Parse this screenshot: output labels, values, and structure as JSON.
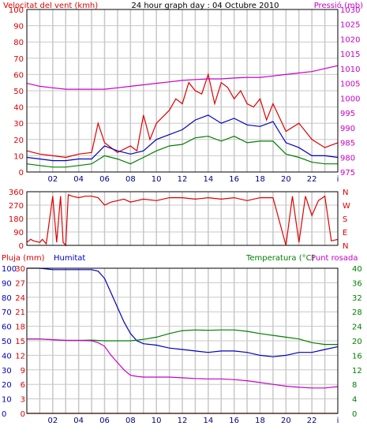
{
  "title": "24 hour graph day : 04 Octubre 2010",
  "colors": {
    "wind_speed": "#e00000",
    "wind_gust": "#e00000",
    "wind_avg": "#0000c0",
    "wind_min": "#008000",
    "pressure": "#c800c8",
    "wind_dir": "#e00000",
    "rain": "#e00000",
    "humidity": "#0000c0",
    "temperature": "#008000",
    "dewpoint": "#c800c8",
    "grid": "#c8c8c8",
    "frame": "#000000"
  },
  "chart_data": [
    {
      "type": "line",
      "title": "24 hour graph day : 04 Octubre 2010",
      "left_axis_label": "Velocitat del vent (kmh)",
      "right_axis_label": "Pressió (mb)",
      "x_ticks": [
        "02",
        "04",
        "06",
        "08",
        "10",
        "12",
        "14",
        "16",
        "18",
        "20",
        "22",
        "i"
      ],
      "left_ticks": [
        "0",
        "10",
        "20",
        "30",
        "40",
        "50",
        "60",
        "70",
        "80",
        "90",
        "100"
      ],
      "right_ticks": [
        "975",
        "980",
        "985",
        "990",
        "995",
        "1000",
        "1005",
        "1010",
        "1015",
        "1020",
        "1025",
        "1030"
      ],
      "ylim_left": [
        0,
        100
      ],
      "ylim_right": [
        975,
        1030
      ],
      "grid": true,
      "series": [
        {
          "key": "wind_gust",
          "axis": "left",
          "x": [
            0,
            1,
            2,
            3,
            4,
            5,
            5.5,
            6,
            6.5,
            7,
            8,
            8.5,
            9,
            9.5,
            10,
            11,
            11.5,
            12,
            12.5,
            13,
            13.5,
            14,
            14.5,
            15,
            15.5,
            16,
            16.5,
            17,
            17.5,
            18,
            18.5,
            19,
            20,
            21,
            22,
            23,
            24
          ],
          "values": [
            13,
            11,
            10,
            9,
            11,
            12,
            30,
            18,
            15,
            12,
            16,
            13,
            35,
            20,
            30,
            38,
            45,
            42,
            55,
            50,
            48,
            60,
            42,
            55,
            52,
            45,
            50,
            42,
            40,
            45,
            32,
            42,
            25,
            30,
            20,
            15,
            18
          ]
        },
        {
          "key": "wind_avg",
          "axis": "left",
          "x": [
            0,
            1,
            2,
            3,
            4,
            5,
            6,
            7,
            8,
            9,
            10,
            11,
            12,
            13,
            14,
            15,
            16,
            17,
            18,
            19,
            20,
            21,
            22,
            23,
            24
          ],
          "values": [
            9,
            8,
            7,
            7,
            8,
            8,
            16,
            13,
            11,
            13,
            20,
            23,
            26,
            32,
            35,
            30,
            33,
            29,
            28,
            31,
            18,
            15,
            10,
            10,
            9
          ]
        },
        {
          "key": "wind_min",
          "axis": "left",
          "x": [
            0,
            1,
            2,
            3,
            4,
            5,
            6,
            7,
            8,
            9,
            10,
            11,
            12,
            13,
            14,
            15,
            16,
            17,
            18,
            19,
            20,
            21,
            22,
            23,
            24
          ],
          "values": [
            5,
            4,
            3,
            3,
            4,
            5,
            10,
            8,
            5,
            9,
            13,
            16,
            17,
            21,
            22,
            19,
            22,
            18,
            19,
            19,
            11,
            9,
            6,
            5,
            5
          ]
        },
        {
          "key": "pressure",
          "axis": "right",
          "x": [
            0,
            1,
            2,
            3,
            4,
            5,
            6,
            7,
            8,
            9,
            10,
            11,
            12,
            13,
            14,
            15,
            16,
            17,
            18,
            19,
            20,
            21,
            22,
            23,
            24
          ],
          "values": [
            1005,
            1004,
            1003.5,
            1003,
            1003,
            1003,
            1003,
            1003.5,
            1004,
            1004.5,
            1005,
            1005.5,
            1006,
            1006.3,
            1006.5,
            1006.5,
            1006.8,
            1007,
            1007,
            1007.5,
            1008,
            1008.5,
            1009,
            1010,
            1011
          ]
        }
      ]
    },
    {
      "type": "line",
      "right_axis_label": "NWSEN",
      "x_ticks": [],
      "left_ticks": [
        "0",
        "90",
        "180",
        "270",
        "360"
      ],
      "right_ticks": [
        "N",
        "E",
        "S",
        "W",
        "N"
      ],
      "ylim_left": [
        0,
        360
      ],
      "grid": true,
      "series": [
        {
          "key": "wind_dir",
          "axis": "left",
          "x": [
            0,
            0.3,
            0.5,
            1.0,
            1.2,
            1.5,
            2.0,
            2.3,
            2.6,
            2.8,
            3.0,
            3.2,
            3.5,
            4.0,
            4.5,
            5.0,
            5.5,
            6.0,
            6.5,
            7.0,
            7.5,
            8.0,
            9.0,
            10.0,
            11.0,
            12.0,
            13.0,
            14.0,
            15.0,
            16.0,
            17.0,
            18.0,
            19.0,
            20.0,
            20.5,
            21.0,
            21.5,
            22.0,
            22.5,
            23.0,
            23.5,
            24.0
          ],
          "values": [
            20,
            40,
            30,
            20,
            40,
            10,
            330,
            20,
            330,
            20,
            0,
            340,
            330,
            320,
            330,
            330,
            320,
            270,
            290,
            300,
            310,
            290,
            310,
            300,
            320,
            320,
            310,
            320,
            310,
            320,
            300,
            320,
            320,
            0,
            330,
            20,
            330,
            200,
            300,
            330,
            30,
            40
          ]
        }
      ]
    },
    {
      "type": "line",
      "left_axis_labels": [
        "Pluja (mm)",
        "Humitat"
      ],
      "right_axis_labels": [
        "Temperatura (°C)",
        "Punt rosada"
      ],
      "x_ticks": [
        "02",
        "04",
        "06",
        "08",
        "10",
        "12",
        "14",
        "16",
        "18",
        "20",
        "22",
        "i"
      ],
      "humidity_ticks": [
        "0",
        "10",
        "20",
        "30",
        "40",
        "50",
        "60",
        "70",
        "80",
        "90",
        "100"
      ],
      "rain_ticks": [
        "0",
        "3",
        "6",
        "9",
        "12",
        "15",
        "18",
        "21",
        "24",
        "27",
        "30"
      ],
      "right_ticks": [
        "0",
        "2",
        "4",
        "6",
        "8",
        "10",
        "12",
        "14",
        "16",
        "18",
        "20",
        "22",
        "24",
        "26",
        "28",
        "30",
        "32",
        "34",
        "36",
        "38",
        "40"
      ],
      "ylim_humidity": [
        0,
        100
      ],
      "ylim_rain": [
        0,
        30
      ],
      "ylim_right": [
        0,
        40
      ],
      "grid": true,
      "series": [
        {
          "key": "humidity",
          "axis": "humidity",
          "x": [
            0,
            1,
            2,
            3,
            4,
            5,
            5.5,
            6,
            6.5,
            7,
            7.5,
            8,
            8.5,
            9,
            10,
            11,
            12,
            13,
            14,
            15,
            16,
            17,
            18,
            19,
            20,
            21,
            22,
            23,
            24
          ],
          "values": [
            100,
            100,
            99,
            99,
            99,
            99,
            98,
            93,
            83,
            73,
            63,
            55,
            50,
            48,
            47,
            45,
            44,
            43,
            42,
            43,
            43,
            42,
            40,
            39,
            40,
            42,
            42,
            44,
            46
          ]
        },
        {
          "key": "temperature",
          "axis": "right",
          "x": [
            0,
            1,
            2,
            3,
            4,
            5,
            6,
            7,
            8,
            9,
            10,
            11,
            12,
            13,
            14,
            15,
            16,
            17,
            18,
            19,
            20,
            21,
            22,
            23,
            24
          ],
          "values": [
            20.5,
            20.5,
            20.3,
            20.1,
            20.1,
            20.2,
            20,
            20,
            20,
            20.4,
            21,
            22,
            22.8,
            23,
            22.9,
            23,
            23,
            22.6,
            22,
            21.5,
            21,
            20.5,
            19.5,
            19,
            19
          ]
        },
        {
          "key": "dewpoint",
          "axis": "right",
          "x": [
            0,
            1,
            2,
            3,
            4,
            5,
            5.5,
            6,
            6.5,
            7,
            7.5,
            8,
            8.5,
            9,
            10,
            11,
            12,
            13,
            14,
            15,
            16,
            17,
            18,
            19,
            20,
            21,
            22,
            23,
            24
          ],
          "values": [
            20.5,
            20.5,
            20.3,
            20.1,
            20.1,
            20,
            19.5,
            18.5,
            16,
            14,
            12,
            10.5,
            10.2,
            10,
            10,
            10,
            9.8,
            9.6,
            9.5,
            9.5,
            9.3,
            9,
            8.5,
            8,
            7.5,
            7.2,
            7,
            7,
            7.4
          ]
        },
        {
          "key": "rain",
          "axis": "rain",
          "x": [
            0,
            24
          ],
          "values": [
            0,
            0
          ]
        }
      ]
    }
  ]
}
